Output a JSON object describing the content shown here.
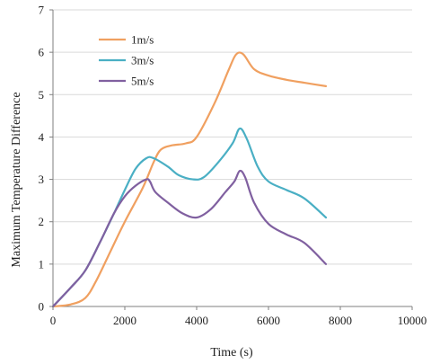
{
  "chart_data": {
    "type": "line",
    "title": "",
    "xlabel": "Time (s)",
    "ylabel": "Maximum Temperature Difference",
    "xlim": [
      0,
      10000
    ],
    "ylim": [
      0,
      7
    ],
    "xticks": [
      0,
      2000,
      4000,
      6000,
      8000,
      10000
    ],
    "yticks": [
      0,
      1,
      2,
      3,
      4,
      5,
      6,
      7
    ],
    "grid": "horizontal",
    "legend_position": "top-left",
    "series": [
      {
        "name": "1m/s",
        "color": "#f0a060",
        "points": [
          [
            0,
            0
          ],
          [
            500,
            0.05
          ],
          [
            900,
            0.2
          ],
          [
            1200,
            0.6
          ],
          [
            1600,
            1.3
          ],
          [
            2000,
            2.0
          ],
          [
            2500,
            2.8
          ],
          [
            2800,
            3.4
          ],
          [
            3000,
            3.7
          ],
          [
            3300,
            3.8
          ],
          [
            3700,
            3.85
          ],
          [
            4000,
            4.0
          ],
          [
            4500,
            4.8
          ],
          [
            4900,
            5.6
          ],
          [
            5100,
            5.95
          ],
          [
            5300,
            5.95
          ],
          [
            5600,
            5.6
          ],
          [
            6000,
            5.45
          ],
          [
            6500,
            5.35
          ],
          [
            7000,
            5.28
          ],
          [
            7600,
            5.2
          ]
        ]
      },
      {
        "name": "3m/s",
        "color": "#4aafc4",
        "points": [
          [
            0,
            0
          ],
          [
            500,
            0.45
          ],
          [
            900,
            0.85
          ],
          [
            1300,
            1.5
          ],
          [
            1700,
            2.2
          ],
          [
            2000,
            2.75
          ],
          [
            2300,
            3.25
          ],
          [
            2600,
            3.5
          ],
          [
            2800,
            3.5
          ],
          [
            3200,
            3.3
          ],
          [
            3500,
            3.1
          ],
          [
            3900,
            3.0
          ],
          [
            4200,
            3.05
          ],
          [
            4600,
            3.4
          ],
          [
            5000,
            3.85
          ],
          [
            5200,
            4.2
          ],
          [
            5400,
            3.95
          ],
          [
            5700,
            3.3
          ],
          [
            6000,
            2.95
          ],
          [
            6500,
            2.75
          ],
          [
            7000,
            2.55
          ],
          [
            7600,
            2.1
          ]
        ]
      },
      {
        "name": "5m/s",
        "color": "#8060a0",
        "points": [
          [
            0,
            0
          ],
          [
            500,
            0.45
          ],
          [
            900,
            0.85
          ],
          [
            1300,
            1.5
          ],
          [
            1700,
            2.2
          ],
          [
            2000,
            2.6
          ],
          [
            2300,
            2.85
          ],
          [
            2600,
            3.0
          ],
          [
            2700,
            2.95
          ],
          [
            2850,
            2.7
          ],
          [
            3200,
            2.45
          ],
          [
            3600,
            2.2
          ],
          [
            4000,
            2.1
          ],
          [
            4400,
            2.3
          ],
          [
            4800,
            2.7
          ],
          [
            5050,
            2.95
          ],
          [
            5200,
            3.2
          ],
          [
            5350,
            3.05
          ],
          [
            5600,
            2.45
          ],
          [
            6000,
            1.95
          ],
          [
            6500,
            1.7
          ],
          [
            7000,
            1.5
          ],
          [
            7600,
            1.0
          ]
        ]
      }
    ]
  }
}
